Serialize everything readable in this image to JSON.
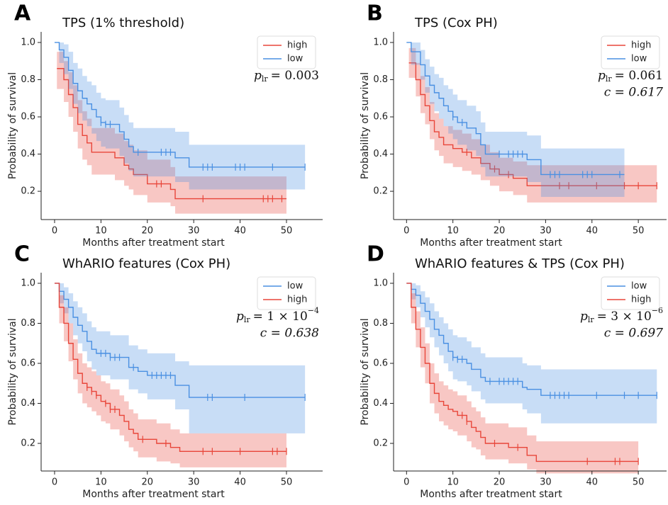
{
  "chart_data": [
    {
      "type": "line",
      "panel": "A",
      "title": "TPS (1% threshold)",
      "x_label": "Months after treatment start",
      "y_label": "Probability of survival",
      "xlim": [
        -2.9,
        57.8
      ],
      "ylim": [
        0.048,
        1.057
      ],
      "xticks": [
        0,
        10,
        20,
        30,
        40,
        50
      ],
      "yticks": [
        0.2,
        0.4,
        0.6,
        0.8,
        {
          "value": 1,
          "label": "1.0"
        }
      ],
      "legend": "upper right",
      "band_opacity": 0.3,
      "p_annotation": {
        "symbol": "p",
        "subscript": "lr",
        "value": "= 0.003"
      },
      "series": [
        {
          "name": "high",
          "color": "#e8463a",
          "x": [
            0.5,
            2,
            3,
            4,
            5,
            6,
            7,
            8,
            13,
            15,
            16,
            17,
            20,
            25,
            26,
            50
          ],
          "values": [
            0.86,
            0.8,
            0.72,
            0.65,
            0.56,
            0.5,
            0.46,
            0.41,
            0.38,
            0.34,
            0.32,
            0.29,
            0.24,
            0.21,
            0.16,
            0.16
          ],
          "ci_lower": [
            0.75,
            0.68,
            0.6,
            0.52,
            0.43,
            0.37,
            0.34,
            0.29,
            0.26,
            0.23,
            0.21,
            0.18,
            0.14,
            0.12,
            0.08,
            0.08
          ],
          "ci_upper": [
            0.95,
            0.9,
            0.84,
            0.77,
            0.69,
            0.63,
            0.59,
            0.54,
            0.51,
            0.47,
            0.45,
            0.42,
            0.37,
            0.33,
            0.28,
            0.28
          ],
          "censored": [
            22,
            23,
            32,
            45,
            46,
            47,
            49
          ]
        },
        {
          "name": "low",
          "color": "#4a90e2",
          "x": [
            0,
            1,
            2,
            3,
            4,
            5,
            6,
            7,
            8,
            9,
            10,
            11,
            14,
            15,
            16,
            17,
            26,
            29,
            54
          ],
          "values": [
            1.0,
            0.96,
            0.92,
            0.85,
            0.78,
            0.74,
            0.7,
            0.67,
            0.64,
            0.6,
            0.57,
            0.56,
            0.52,
            0.48,
            0.44,
            0.41,
            0.38,
            0.33,
            0.33
          ],
          "ci_lower": [
            1.0,
            0.89,
            0.83,
            0.75,
            0.67,
            0.62,
            0.58,
            0.55,
            0.51,
            0.47,
            0.44,
            0.43,
            0.39,
            0.35,
            0.31,
            0.28,
            0.25,
            0.21,
            0.21
          ],
          "ci_upper": [
            1.0,
            1.0,
            0.99,
            0.95,
            0.89,
            0.86,
            0.82,
            0.79,
            0.77,
            0.73,
            0.7,
            0.69,
            0.65,
            0.61,
            0.57,
            0.54,
            0.52,
            0.45,
            0.45
          ],
          "censored": [
            10,
            11,
            12,
            18,
            23,
            24,
            25,
            32,
            33,
            34,
            39,
            40,
            41,
            47,
            54
          ]
        }
      ]
    },
    {
      "type": "line",
      "panel": "B",
      "title": "TPS (Cox PH)",
      "x_label": "Months after treatment start",
      "y_label": "Probability of survival",
      "xlim": [
        -2.8,
        56.1
      ],
      "ylim": [
        0.048,
        1.057
      ],
      "xticks": [
        0,
        10,
        20,
        30,
        40,
        50
      ],
      "yticks": [
        0.2,
        0.4,
        0.6,
        0.8,
        {
          "value": 1,
          "label": "1.0"
        }
      ],
      "legend": "upper right",
      "band_opacity": 0.3,
      "p_annotation": {
        "symbol": "p",
        "subscript": "lr",
        "value": "= 0.061"
      },
      "c_annotation": "c = 0.617",
      "series": [
        {
          "name": "high",
          "color": "#e8463a",
          "x": [
            0.5,
            2,
            3,
            4,
            5,
            6,
            7,
            8,
            10,
            12,
            14,
            16,
            18,
            20,
            23,
            26,
            54
          ],
          "values": [
            0.89,
            0.8,
            0.72,
            0.66,
            0.58,
            0.52,
            0.49,
            0.45,
            0.43,
            0.41,
            0.38,
            0.35,
            0.32,
            0.29,
            0.27,
            0.23,
            0.23
          ],
          "ci_lower": [
            0.81,
            0.71,
            0.62,
            0.56,
            0.48,
            0.42,
            0.39,
            0.35,
            0.33,
            0.31,
            0.29,
            0.26,
            0.23,
            0.2,
            0.18,
            0.14,
            0.14
          ],
          "ci_upper": [
            0.97,
            0.89,
            0.82,
            0.76,
            0.68,
            0.62,
            0.59,
            0.55,
            0.53,
            0.51,
            0.48,
            0.45,
            0.41,
            0.38,
            0.36,
            0.34,
            0.34
          ],
          "censored": [
            13,
            19,
            22,
            33,
            35,
            41,
            47,
            50,
            54
          ]
        },
        {
          "name": "low",
          "color": "#4a90e2",
          "x": [
            0,
            1,
            3,
            4,
            5,
            6,
            7,
            8,
            9,
            10,
            11,
            13,
            15,
            16,
            17,
            21,
            26,
            29,
            47
          ],
          "values": [
            1.0,
            0.95,
            0.88,
            0.82,
            0.77,
            0.73,
            0.7,
            0.66,
            0.63,
            0.6,
            0.57,
            0.54,
            0.51,
            0.45,
            0.4,
            0.4,
            0.37,
            0.29,
            0.29
          ],
          "ci_lower": [
            1.0,
            0.88,
            0.8,
            0.73,
            0.67,
            0.63,
            0.59,
            0.55,
            0.51,
            0.48,
            0.45,
            0.42,
            0.39,
            0.33,
            0.28,
            0.28,
            0.25,
            0.17,
            0.17
          ],
          "ci_upper": [
            1.0,
            1.0,
            0.96,
            0.91,
            0.87,
            0.83,
            0.81,
            0.77,
            0.75,
            0.72,
            0.69,
            0.66,
            0.63,
            0.57,
            0.52,
            0.52,
            0.5,
            0.43,
            0.43
          ],
          "censored": [
            10,
            12,
            20,
            22,
            23,
            24,
            25,
            31,
            32,
            33,
            38,
            39,
            40,
            46
          ]
        }
      ]
    },
    {
      "type": "line",
      "panel": "C",
      "title": "WhARIO features (Cox PH)",
      "x_label": "Months after treatment start",
      "y_label": "Probability of survival",
      "xlim": [
        -2.9,
        57.8
      ],
      "ylim": [
        0.062,
        1.053
      ],
      "xticks": [
        0,
        10,
        20,
        30,
        40,
        50
      ],
      "yticks": [
        0.2,
        0.4,
        0.6,
        0.8,
        {
          "value": 1,
          "label": "1.0"
        }
      ],
      "legend": "upper right",
      "band_opacity": 0.3,
      "p_annotation": {
        "symbol": "p",
        "subscript": "lr",
        "value": "= 1 × 10",
        "exponent": "−4"
      },
      "c_annotation": "c = 0.638",
      "series": [
        {
          "name": "low",
          "color": "#4a90e2",
          "x": [
            0,
            1,
            2,
            3,
            4,
            5,
            6,
            7,
            8,
            9,
            12,
            16,
            18,
            20,
            26,
            29,
            54
          ],
          "values": [
            1.0,
            0.96,
            0.92,
            0.88,
            0.83,
            0.79,
            0.76,
            0.71,
            0.67,
            0.65,
            0.63,
            0.58,
            0.56,
            0.54,
            0.49,
            0.43,
            0.43
          ],
          "ci_lower": [
            1.0,
            0.9,
            0.85,
            0.8,
            0.74,
            0.7,
            0.66,
            0.61,
            0.57,
            0.54,
            0.52,
            0.47,
            0.45,
            0.42,
            0.37,
            0.25,
            0.25
          ],
          "ci_upper": [
            1.0,
            1.0,
            0.98,
            0.95,
            0.91,
            0.88,
            0.85,
            0.81,
            0.78,
            0.76,
            0.74,
            0.69,
            0.67,
            0.65,
            0.61,
            0.59,
            0.59
          ],
          "censored": [
            10,
            11,
            12,
            13,
            14,
            17,
            21,
            22,
            23,
            24,
            25,
            33,
            34,
            41,
            54
          ]
        },
        {
          "name": "high",
          "color": "#e8463a",
          "x": [
            0,
            1,
            2,
            3,
            4,
            5,
            6,
            7,
            8,
            9,
            10,
            11,
            12,
            14,
            15,
            16,
            17,
            18,
            22,
            25,
            27,
            50
          ],
          "values": [
            1.0,
            0.88,
            0.8,
            0.7,
            0.62,
            0.55,
            0.5,
            0.48,
            0.46,
            0.44,
            0.41,
            0.4,
            0.37,
            0.34,
            0.31,
            0.27,
            0.25,
            0.22,
            0.2,
            0.18,
            0.16,
            0.16
          ],
          "ci_lower": [
            1.0,
            0.8,
            0.71,
            0.61,
            0.52,
            0.45,
            0.4,
            0.38,
            0.36,
            0.34,
            0.31,
            0.3,
            0.27,
            0.24,
            0.21,
            0.18,
            0.16,
            0.13,
            0.11,
            0.1,
            0.08,
            0.08
          ],
          "ci_upper": [
            1.0,
            0.94,
            0.88,
            0.8,
            0.72,
            0.65,
            0.6,
            0.58,
            0.56,
            0.54,
            0.51,
            0.5,
            0.47,
            0.44,
            0.41,
            0.37,
            0.35,
            0.32,
            0.3,
            0.27,
            0.25,
            0.25
          ],
          "censored": [
            7,
            8,
            9,
            11,
            12,
            13,
            19,
            24,
            32,
            34,
            40,
            47,
            48,
            50
          ]
        }
      ]
    },
    {
      "type": "line",
      "panel": "D",
      "title": "WhARIO features & TPS (Cox PH)",
      "x_label": "Months after treatment start",
      "y_label": "Probability of survival",
      "xlim": [
        -2.8,
        56.1
      ],
      "ylim": [
        0.062,
        1.053
      ],
      "xticks": [
        0,
        10,
        20,
        30,
        40,
        50
      ],
      "yticks": [
        0.2,
        0.4,
        0.6,
        0.8,
        {
          "value": 1,
          "label": "1.0"
        }
      ],
      "legend": "upper right",
      "band_opacity": 0.3,
      "p_annotation": {
        "symbol": "p",
        "subscript": "lr",
        "value": "= 3 × 10",
        "exponent": "−6"
      },
      "c_annotation": "c = 0.697",
      "series": [
        {
          "name": "low",
          "color": "#4a90e2",
          "x": [
            0,
            1,
            2,
            3,
            4,
            5,
            6,
            7,
            8,
            9,
            10,
            11,
            13,
            14,
            16,
            17,
            19,
            25,
            26,
            29,
            54
          ],
          "values": [
            1.0,
            0.97,
            0.94,
            0.9,
            0.86,
            0.82,
            0.77,
            0.74,
            0.7,
            0.66,
            0.63,
            0.62,
            0.6,
            0.57,
            0.53,
            0.51,
            0.51,
            0.48,
            0.47,
            0.44,
            0.44
          ],
          "ci_lower": [
            1.0,
            0.92,
            0.88,
            0.83,
            0.78,
            0.73,
            0.68,
            0.64,
            0.6,
            0.56,
            0.52,
            0.51,
            0.49,
            0.46,
            0.42,
            0.4,
            0.4,
            0.37,
            0.35,
            0.3,
            0.3
          ],
          "ci_upper": [
            1.0,
            1.0,
            0.99,
            0.96,
            0.93,
            0.9,
            0.86,
            0.83,
            0.8,
            0.77,
            0.74,
            0.73,
            0.71,
            0.68,
            0.65,
            0.63,
            0.63,
            0.6,
            0.59,
            0.57,
            0.57
          ],
          "censored": [
            10,
            11,
            12,
            18,
            20,
            21,
            22,
            23,
            24,
            31,
            32,
            33,
            34,
            35,
            41,
            47,
            50,
            54
          ]
        },
        {
          "name": "high",
          "color": "#e8463a",
          "x": [
            0,
            1,
            2,
            3,
            4,
            5,
            6,
            7,
            8,
            9,
            10,
            11,
            13,
            14,
            15,
            16,
            17,
            18,
            22,
            26,
            28,
            50
          ],
          "values": [
            1.0,
            0.88,
            0.77,
            0.68,
            0.6,
            0.5,
            0.45,
            0.41,
            0.39,
            0.37,
            0.36,
            0.34,
            0.31,
            0.28,
            0.26,
            0.23,
            0.2,
            0.2,
            0.18,
            0.14,
            0.11,
            0.11
          ],
          "ci_lower": [
            1.0,
            0.8,
            0.68,
            0.58,
            0.5,
            0.4,
            0.35,
            0.31,
            0.29,
            0.27,
            0.26,
            0.24,
            0.21,
            0.18,
            0.17,
            0.14,
            0.12,
            0.12,
            0.1,
            0.07,
            0.05,
            0.05
          ],
          "ci_upper": [
            1.0,
            0.95,
            0.86,
            0.78,
            0.7,
            0.6,
            0.55,
            0.51,
            0.49,
            0.47,
            0.46,
            0.44,
            0.41,
            0.38,
            0.36,
            0.33,
            0.3,
            0.3,
            0.28,
            0.24,
            0.21,
            0.21
          ],
          "censored": [
            12,
            13,
            19,
            24,
            39,
            45,
            46,
            50
          ]
        }
      ]
    }
  ]
}
